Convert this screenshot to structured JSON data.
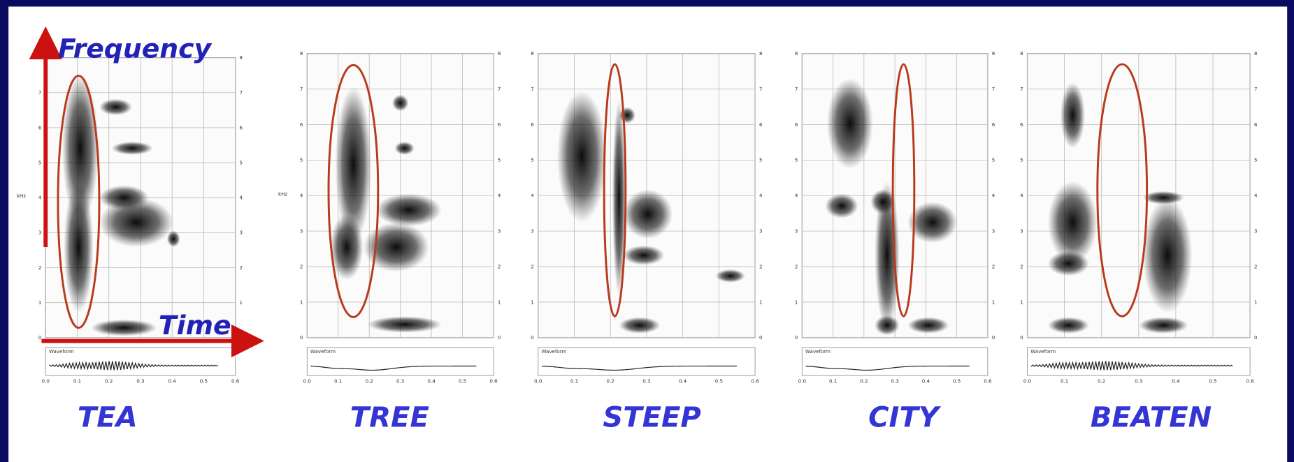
{
  "axes": {
    "y_label": "Frequency",
    "x_label": "Time"
  },
  "spectrogram_axis": {
    "ylabel": "kHz",
    "waveform_label": "Waveform",
    "yticks": [
      0,
      1,
      2,
      3,
      4,
      5,
      6,
      7,
      8
    ],
    "xticks": [
      "0.0",
      "0.1",
      "0.2",
      "0.3",
      "0.4",
      "0.5",
      "0.6"
    ]
  },
  "panels": [
    {
      "word": "TEA"
    },
    {
      "word": "TREE"
    },
    {
      "word": "STEEP"
    },
    {
      "word": "CITY"
    },
    {
      "word": "BEATEN"
    }
  ]
}
